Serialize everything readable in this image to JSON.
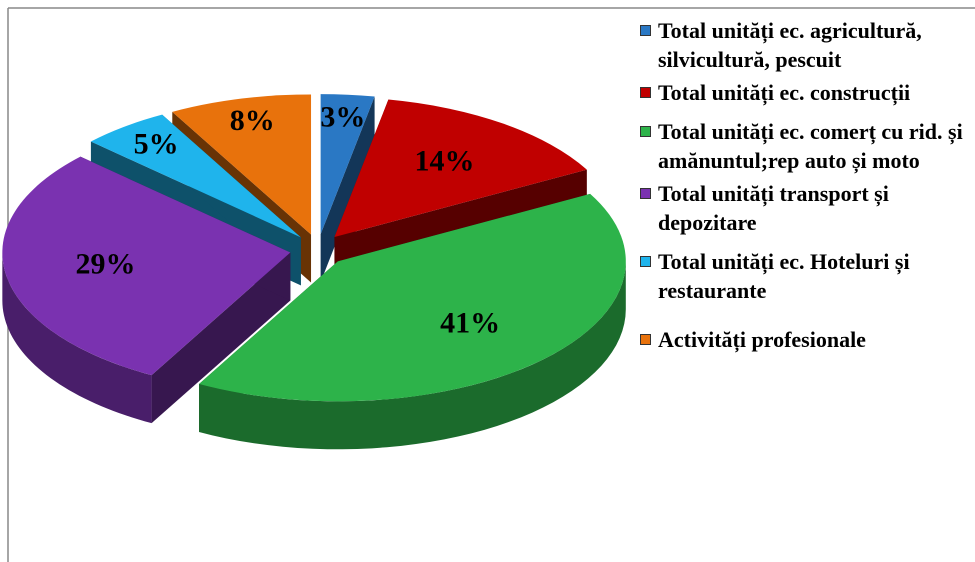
{
  "chart_data": {
    "type": "pie",
    "categories": [
      "Total unități ec. agricultură, silvicultură, pescuit",
      "Total unități ec. construcții",
      "Total unități ec. comerț cu rid. și amănuntul;rep auto și moto",
      "Total unități transport și depozitare",
      "Total unități ec. Hoteluri și restaurante",
      "Activități profesionale"
    ],
    "values": [
      3,
      14,
      41,
      29,
      5,
      8
    ],
    "value_labels": [
      "3%",
      "14%",
      "41%",
      "29%",
      "5%",
      "8%"
    ],
    "colors": [
      "#2a78c4",
      "#c00000",
      "#2db34a",
      "#7a32b0",
      "#1fb4ec",
      "#e8720c"
    ],
    "legend": "right"
  }
}
